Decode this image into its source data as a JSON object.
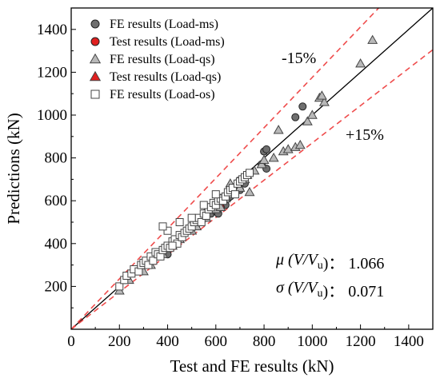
{
  "chart_data": {
    "type": "scatter",
    "xlabel": "Test and FE results (kN)",
    "ylabel": "Predictions (kN)",
    "xlim": [
      0,
      1500
    ],
    "ylim": [
      0,
      1500
    ],
    "xticks": [
      0,
      200,
      400,
      600,
      800,
      1000,
      1200,
      1400
    ],
    "yticks": [
      200,
      400,
      600,
      800,
      1000,
      1200,
      1400
    ],
    "grid": false,
    "legend_position": "top-left",
    "reference_lines": [
      {
        "label": "",
        "slope": 1.0,
        "color": "#000000",
        "style": "solid"
      },
      {
        "label": "-15%",
        "slope": 1.176,
        "color": "#ef4c4c",
        "style": "dashed"
      },
      {
        "label": "+15%",
        "slope": 0.87,
        "color": "#ef4c4c",
        "style": "dashed"
      }
    ],
    "statistics": [
      {
        "symbol": "μ",
        "expr": "V/V",
        "sub": "u",
        "value": "1.066"
      },
      {
        "symbol": "σ",
        "expr": "V/V",
        "sub": "u",
        "value": "0.071"
      }
    ],
    "series": [
      {
        "name": "FE results (Load-ms)",
        "marker": "circle",
        "fill": "#6f6f6f",
        "stroke": "#222222",
        "points": [
          [
            430,
            400
          ],
          [
            450,
            430
          ],
          [
            480,
            460
          ],
          [
            500,
            470
          ],
          [
            520,
            490
          ],
          [
            540,
            500
          ],
          [
            560,
            520
          ],
          [
            580,
            540
          ],
          [
            600,
            550
          ],
          [
            610,
            540
          ],
          [
            620,
            570
          ],
          [
            640,
            580
          ],
          [
            650,
            610
          ],
          [
            660,
            620
          ],
          [
            680,
            640
          ],
          [
            700,
            650
          ],
          [
            720,
            680
          ],
          [
            790,
            770
          ],
          [
            810,
            750
          ],
          [
            800,
            830
          ],
          [
            810,
            840
          ],
          [
            930,
            990
          ],
          [
            960,
            1040
          ],
          [
            400,
            350
          ],
          [
            380,
            360
          ],
          [
            470,
            450
          ],
          [
            560,
            545
          ]
        ]
      },
      {
        "name": "Test results (Load-ms)",
        "marker": "circle",
        "fill": "#e02020",
        "stroke": "#222222",
        "points": [
          [
            610,
            580
          ],
          [
            620,
            570
          ]
        ]
      },
      {
        "name": "FE results (Load-qs)",
        "marker": "triangle",
        "fill": "#b8b8b8",
        "stroke": "#444444",
        "points": [
          [
            200,
            180
          ],
          [
            240,
            230
          ],
          [
            300,
            270
          ],
          [
            330,
            300
          ],
          [
            380,
            350
          ],
          [
            420,
            390
          ],
          [
            450,
            420
          ],
          [
            500,
            460
          ],
          [
            520,
            480
          ],
          [
            560,
            520
          ],
          [
            600,
            560
          ],
          [
            620,
            570
          ],
          [
            640,
            610
          ],
          [
            660,
            630
          ],
          [
            680,
            650
          ],
          [
            690,
            690
          ],
          [
            700,
            660
          ],
          [
            720,
            700
          ],
          [
            730,
            720
          ],
          [
            740,
            640
          ],
          [
            760,
            740
          ],
          [
            790,
            770
          ],
          [
            800,
            790
          ],
          [
            840,
            800
          ],
          [
            860,
            930
          ],
          [
            880,
            830
          ],
          [
            900,
            840
          ],
          [
            930,
            850
          ],
          [
            950,
            860
          ],
          [
            980,
            970
          ],
          [
            1030,
            1080
          ],
          [
            1050,
            1060
          ],
          [
            1040,
            1090
          ],
          [
            1200,
            1240
          ],
          [
            1250,
            1350
          ],
          [
            1000,
            1000
          ],
          [
            660,
            680
          ],
          [
            620,
            610
          ]
        ]
      },
      {
        "name": "Test results (Load-qs)",
        "marker": "triangle",
        "fill": "#e02020",
        "stroke": "#444444",
        "points": []
      },
      {
        "name": "FE results (Load-os)",
        "marker": "square",
        "fill": "#ffffff",
        "stroke": "#444444",
        "points": [
          [
            200,
            200
          ],
          [
            220,
            230
          ],
          [
            230,
            250
          ],
          [
            250,
            260
          ],
          [
            260,
            280
          ],
          [
            280,
            270
          ],
          [
            290,
            300
          ],
          [
            300,
            310
          ],
          [
            310,
            320
          ],
          [
            320,
            300
          ],
          [
            330,
            340
          ],
          [
            340,
            320
          ],
          [
            350,
            360
          ],
          [
            360,
            350
          ],
          [
            370,
            340
          ],
          [
            380,
            370
          ],
          [
            390,
            380
          ],
          [
            400,
            390
          ],
          [
            410,
            380
          ],
          [
            420,
            410
          ],
          [
            430,
            420
          ],
          [
            440,
            400
          ],
          [
            450,
            440
          ],
          [
            460,
            430
          ],
          [
            470,
            450
          ],
          [
            480,
            460
          ],
          [
            490,
            470
          ],
          [
            500,
            480
          ],
          [
            510,
            500
          ],
          [
            520,
            510
          ],
          [
            530,
            520
          ],
          [
            540,
            500
          ],
          [
            550,
            540
          ],
          [
            560,
            530
          ],
          [
            570,
            560
          ],
          [
            580,
            570
          ],
          [
            590,
            590
          ],
          [
            600,
            580
          ],
          [
            610,
            600
          ],
          [
            620,
            610
          ],
          [
            630,
            600
          ],
          [
            640,
            620
          ],
          [
            650,
            640
          ],
          [
            660,
            650
          ],
          [
            670,
            660
          ],
          [
            680,
            630
          ],
          [
            690,
            680
          ],
          [
            700,
            690
          ],
          [
            710,
            700
          ],
          [
            720,
            710
          ],
          [
            730,
            720
          ],
          [
            740,
            730
          ],
          [
            600,
            630
          ],
          [
            550,
            580
          ],
          [
            500,
            520
          ],
          [
            400,
            460
          ],
          [
            380,
            480
          ],
          [
            450,
            500
          ],
          [
            420,
            390
          ]
        ]
      }
    ]
  }
}
